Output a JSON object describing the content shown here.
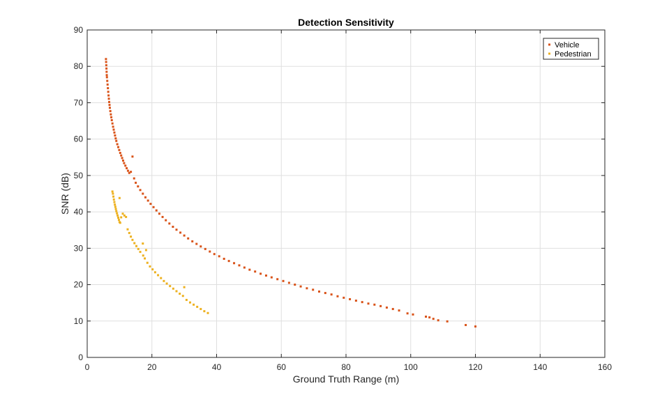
{
  "chart_data": {
    "type": "scatter",
    "title": "Detection Sensitivity",
    "xlabel": "Ground Truth Range (m)",
    "ylabel": "SNR (dB)",
    "xlim": [
      0,
      160
    ],
    "ylim": [
      0,
      90
    ],
    "xticks": [
      0,
      20,
      40,
      60,
      80,
      100,
      120,
      140,
      160
    ],
    "yticks": [
      0,
      10,
      20,
      30,
      40,
      50,
      60,
      70,
      80,
      90
    ],
    "grid": true,
    "legend_position": "top-right",
    "series": [
      {
        "name": "Vehicle",
        "color": "#d95319",
        "points": [
          [
            5.8,
            82.0
          ],
          [
            5.85,
            81.2
          ],
          [
            5.9,
            80.3
          ],
          [
            5.95,
            79.4
          ],
          [
            6.0,
            78.5
          ],
          [
            6.05,
            77.6
          ],
          [
            6.1,
            77.0
          ],
          [
            6.2,
            76.0
          ],
          [
            6.3,
            75.0
          ],
          [
            6.4,
            74.0
          ],
          [
            6.5,
            73.0
          ],
          [
            6.6,
            72.0
          ],
          [
            6.7,
            71.1
          ],
          [
            6.8,
            70.2
          ],
          [
            6.9,
            69.4
          ],
          [
            7.0,
            68.6
          ],
          [
            7.15,
            67.7
          ],
          [
            7.3,
            66.8
          ],
          [
            7.45,
            66.0
          ],
          [
            7.6,
            65.2
          ],
          [
            7.8,
            64.3
          ],
          [
            8.0,
            63.4
          ],
          [
            8.2,
            62.6
          ],
          [
            8.4,
            61.8
          ],
          [
            8.6,
            61.0
          ],
          [
            8.8,
            60.2
          ],
          [
            9.0,
            59.5
          ],
          [
            9.3,
            58.6
          ],
          [
            9.6,
            57.8
          ],
          [
            9.9,
            57.0
          ],
          [
            10.2,
            56.2
          ],
          [
            10.5,
            55.5
          ],
          [
            10.8,
            54.8
          ],
          [
            11.1,
            54.1
          ],
          [
            11.4,
            53.4
          ],
          [
            11.8,
            52.7
          ],
          [
            12.2,
            52.0
          ],
          [
            12.6,
            51.3
          ],
          [
            13.0,
            50.7
          ],
          [
            14.0,
            55.2
          ],
          [
            13.5,
            51.0
          ],
          [
            14.5,
            49.2
          ],
          [
            15.0,
            48.0
          ],
          [
            15.7,
            47.0
          ],
          [
            16.4,
            46.0
          ],
          [
            17.2,
            45.0
          ],
          [
            18.0,
            44.0
          ],
          [
            18.8,
            43.1
          ],
          [
            19.6,
            42.2
          ],
          [
            20.5,
            41.3
          ],
          [
            21.4,
            40.4
          ],
          [
            22.3,
            39.5
          ],
          [
            23.3,
            38.6
          ],
          [
            24.3,
            37.7
          ],
          [
            25.4,
            36.8
          ],
          [
            26.5,
            35.9
          ],
          [
            27.6,
            35.1
          ],
          [
            28.8,
            34.3
          ],
          [
            30.0,
            33.5
          ],
          [
            31.2,
            32.7
          ],
          [
            32.5,
            31.9
          ],
          [
            33.8,
            31.2
          ],
          [
            35.1,
            30.5
          ],
          [
            36.5,
            29.8
          ],
          [
            37.9,
            29.1
          ],
          [
            39.3,
            28.4
          ],
          [
            40.8,
            27.8
          ],
          [
            42.3,
            27.1
          ],
          [
            43.8,
            26.5
          ],
          [
            45.4,
            25.9
          ],
          [
            47.0,
            25.3
          ],
          [
            48.6,
            24.7
          ],
          [
            50.2,
            24.1
          ],
          [
            51.9,
            23.6
          ],
          [
            53.6,
            23.0
          ],
          [
            55.3,
            22.5
          ],
          [
            57.0,
            22.0
          ],
          [
            58.8,
            21.5
          ],
          [
            60.6,
            21.0
          ],
          [
            62.4,
            20.5
          ],
          [
            64.2,
            20.0
          ],
          [
            66.0,
            19.5
          ],
          [
            67.9,
            19.0
          ],
          [
            69.8,
            18.6
          ],
          [
            71.7,
            18.1
          ],
          [
            73.6,
            17.7
          ],
          [
            75.5,
            17.3
          ],
          [
            77.4,
            16.8
          ],
          [
            79.3,
            16.4
          ],
          [
            81.2,
            16.0
          ],
          [
            83.1,
            15.6
          ],
          [
            85.0,
            15.2
          ],
          [
            86.9,
            14.8
          ],
          [
            88.8,
            14.5
          ],
          [
            90.7,
            14.1
          ],
          [
            92.6,
            13.7
          ],
          [
            94.5,
            13.3
          ],
          [
            96.4,
            12.9
          ],
          [
            99.0,
            12.1
          ],
          [
            100.7,
            11.8
          ],
          [
            104.7,
            11.2
          ],
          [
            105.8,
            11.0
          ],
          [
            107.0,
            10.6
          ],
          [
            108.5,
            10.2
          ],
          [
            111.3,
            9.9
          ],
          [
            117.0,
            8.9
          ],
          [
            120.0,
            8.5
          ]
        ]
      },
      {
        "name": "Pedestrian",
        "color": "#edb120",
        "points": [
          [
            7.8,
            45.6
          ],
          [
            7.95,
            45.0
          ],
          [
            8.1,
            44.2
          ],
          [
            8.25,
            43.4
          ],
          [
            8.4,
            42.7
          ],
          [
            8.55,
            42.0
          ],
          [
            8.7,
            41.4
          ],
          [
            8.85,
            40.8
          ],
          [
            9.0,
            40.2
          ],
          [
            9.2,
            39.6
          ],
          [
            9.4,
            39.0
          ],
          [
            9.6,
            38.4
          ],
          [
            9.8,
            37.8
          ],
          [
            10.0,
            37.2
          ],
          [
            10.0,
            43.8
          ],
          [
            10.2,
            37.0
          ],
          [
            10.5,
            38.5
          ],
          [
            11.0,
            39.5
          ],
          [
            11.5,
            39.0
          ],
          [
            12.0,
            38.6
          ],
          [
            12.5,
            35.2
          ],
          [
            13.0,
            34.2
          ],
          [
            13.5,
            33.2
          ],
          [
            14.0,
            32.3
          ],
          [
            14.6,
            31.4
          ],
          [
            15.2,
            30.6
          ],
          [
            15.8,
            29.8
          ],
          [
            16.4,
            29.0
          ],
          [
            17.2,
            31.3
          ],
          [
            17.3,
            28.0
          ],
          [
            18.2,
            29.5
          ],
          [
            17.8,
            27.2
          ],
          [
            18.6,
            26.0
          ],
          [
            19.4,
            25.0
          ],
          [
            20.2,
            24.2
          ],
          [
            21.0,
            23.4
          ],
          [
            21.9,
            22.6
          ],
          [
            22.8,
            21.8
          ],
          [
            23.7,
            21.0
          ],
          [
            24.6,
            20.3
          ],
          [
            25.6,
            19.6
          ],
          [
            26.6,
            18.9
          ],
          [
            27.6,
            18.2
          ],
          [
            28.6,
            17.5
          ],
          [
            29.6,
            16.9
          ],
          [
            30.0,
            19.3
          ],
          [
            30.7,
            15.8
          ],
          [
            31.8,
            15.1
          ],
          [
            32.9,
            14.5
          ],
          [
            34.0,
            13.9
          ],
          [
            35.1,
            13.3
          ],
          [
            36.2,
            12.7
          ],
          [
            37.3,
            12.2
          ]
        ]
      }
    ]
  }
}
